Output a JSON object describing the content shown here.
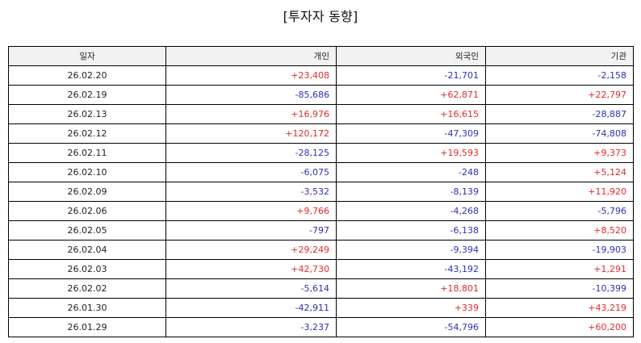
{
  "title": "[투자자 동향]",
  "table": {
    "headers": [
      "일자",
      "개인",
      "외국인",
      "기관"
    ],
    "rows": [
      [
        "26.02.20",
        "+23,408",
        "-21,701",
        "-2,158"
      ],
      [
        "26.02.19",
        "-85,686",
        "+62,871",
        "+22,797"
      ],
      [
        "26.02.13",
        "+16,976",
        "+16,615",
        "-28,887"
      ],
      [
        "26.02.12",
        "+120,172",
        "-47,309",
        "-74,808"
      ],
      [
        "26.02.11",
        "-28,125",
        "+19,593",
        "+9,373"
      ],
      [
        "26.02.10",
        "-6,075",
        "-248",
        "+5,124"
      ],
      [
        "26.02.09",
        "-3,532",
        "-8,139",
        "+11,920"
      ],
      [
        "26.02.06",
        "+9,766",
        "-4,268",
        "-5,796"
      ],
      [
        "26.02.05",
        "-797",
        "-6,138",
        "+8,520"
      ],
      [
        "26.02.04",
        "+29,249",
        "-9,394",
        "-19,903"
      ],
      [
        "26.02.03",
        "+42,730",
        "-43,192",
        "+1,291"
      ],
      [
        "26.02.02",
        "-5,614",
        "+18,801",
        "-10,399"
      ],
      [
        "26.01.30",
        "-42,911",
        "+339",
        "+43,219"
      ],
      [
        "26.01.29",
        "-3,237",
        "-54,796",
        "+60,200"
      ]
    ]
  },
  "colors": {
    "positive": "#e02b2b",
    "negative": "#2f2fb8",
    "header_background": "#f2f2f2",
    "border": "#000000"
  }
}
